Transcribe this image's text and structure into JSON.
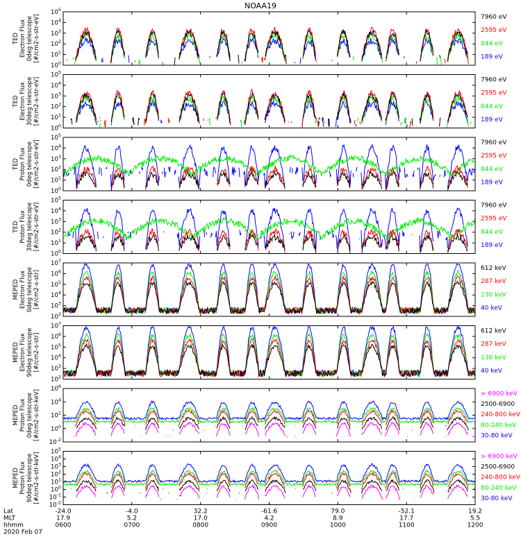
{
  "chart_data": {
    "type": "line",
    "title": "NOAA19",
    "date_label": "2020 Feb 07",
    "footer_rows": [
      {
        "label": "Lat",
        "values": [
          "-24.0",
          "-4.0",
          "32.2",
          "-61.6",
          "79.0",
          "-52.1",
          "19.2"
        ]
      },
      {
        "label": "MLT",
        "values": [
          "17.9",
          "5.2",
          "17.0",
          "4.2",
          "8.9",
          "17.7",
          "5.5"
        ]
      },
      {
        "label": "hhmm",
        "values": [
          "0600",
          "0700",
          "0800",
          "0900",
          "1000",
          "1100",
          "1200"
        ]
      }
    ],
    "x_range_hhmm": [
      "0600",
      "1200"
    ],
    "colors": {
      "black": "#000000",
      "red": "#ff0000",
      "green": "#00ee00",
      "blue": "#0000ff",
      "magenta": "#ff00ff"
    },
    "passes_hhmm": [
      "0620",
      "0648",
      "0718",
      "0750",
      "0820",
      "0845",
      "0905",
      "0935",
      "1005",
      "1030",
      "1048",
      "1118",
      "1145"
    ],
    "panels": [
      {
        "ylabel": [
          "TED",
          "Electron Flux",
          "0deg telescope",
          "[#/cm2-s-str-eV]"
        ],
        "yticks": [
          "10^0",
          "10^1",
          "10^2",
          "10^3",
          "10^4",
          "10^5"
        ],
        "legend": [
          {
            "label": "7960 eV",
            "color": "black"
          },
          {
            "label": "2595 eV",
            "color": "red"
          },
          {
            "label": "844 eV",
            "color": "green"
          },
          {
            "label": "189 eV",
            "color": "blue"
          }
        ]
      },
      {
        "ylabel": [
          "TED",
          "Electron Flux",
          "30deg telescope",
          "[#/cm2-s-str-eV]"
        ],
        "yticks": [
          "10^0",
          "10^1",
          "10^2",
          "10^3",
          "10^4",
          "10^5"
        ],
        "legend": [
          {
            "label": "7960 eV",
            "color": "black"
          },
          {
            "label": "2595 eV",
            "color": "red"
          },
          {
            "label": "844 eV",
            "color": "green"
          },
          {
            "label": "189 eV",
            "color": "blue"
          }
        ]
      },
      {
        "ylabel": [
          "TED",
          "Proton Flux",
          "0deg telescope",
          "[#/cm2-s-str-eV]"
        ],
        "yticks": [
          "10^0",
          "10^1",
          "10^2",
          "10^3",
          "10^4",
          "10^5"
        ],
        "legend": [
          {
            "label": "7960 eV",
            "color": "black"
          },
          {
            "label": "2595 eV",
            "color": "red"
          },
          {
            "label": "844 eV",
            "color": "green"
          },
          {
            "label": "189 eV",
            "color": "blue"
          }
        ]
      },
      {
        "ylabel": [
          "TED",
          "Proton Flux",
          "30deg telescope",
          "[#/cm2-s-str-eV]"
        ],
        "yticks": [
          "10^0",
          "10^1",
          "10^2",
          "10^3",
          "10^4",
          "10^5"
        ],
        "legend": [
          {
            "label": "7960 eV",
            "color": "black"
          },
          {
            "label": "2595 eV",
            "color": "red"
          },
          {
            "label": "844 eV",
            "color": "green"
          },
          {
            "label": "189 eV",
            "color": "blue"
          }
        ]
      },
      {
        "ylabel": [
          "MEPED",
          "Electron Flux",
          "0deg telescope",
          "[#/cm2-s-str]"
        ],
        "yticks": [
          "10^2",
          "10^3",
          "10^4",
          "10^5",
          "10^6",
          "10^7"
        ],
        "legend": [
          {
            "label": "612 keV",
            "color": "black"
          },
          {
            "label": "287 keV",
            "color": "red"
          },
          {
            "label": "130 keV",
            "color": "green"
          },
          {
            "label": "40 keV",
            "color": "blue"
          }
        ]
      },
      {
        "ylabel": [
          "MEPED",
          "Electron Flux",
          "90deg telescope",
          "[#/cm2-s-str]"
        ],
        "yticks": [
          "10^2",
          "10^3",
          "10^4",
          "10^5",
          "10^6",
          "10^7"
        ],
        "legend": [
          {
            "label": "612 keV",
            "color": "black"
          },
          {
            "label": "287 keV",
            "color": "red"
          },
          {
            "label": "130 keV",
            "color": "green"
          },
          {
            "label": "40 keV",
            "color": "blue"
          }
        ]
      },
      {
        "ylabel": [
          "MEPED",
          "Proton Flux",
          "0deg telescope",
          "[#/cm2-s-str-keV]"
        ],
        "yticks": [
          "10^-2",
          "10^0",
          "10^2",
          "10^4",
          "10^6"
        ],
        "legend": [
          {
            "label": "> 6900 keV",
            "color": "magenta"
          },
          {
            "label": "2500-6900",
            "color": "black"
          },
          {
            "label": "240-800 keV",
            "color": "red"
          },
          {
            "label": "80-240 keV",
            "color": "green"
          },
          {
            "label": "30-80 keV",
            "color": "blue"
          }
        ]
      },
      {
        "ylabel": [
          "MEPED",
          "Proton Flux",
          "90deg telescope",
          "[#/cm2-s-str-keV]"
        ],
        "yticks": [
          "10^-2",
          "10^-1",
          "10^0",
          "10^1",
          "10^2",
          "10^3",
          "10^4",
          "10^5"
        ],
        "legend": [
          {
            "label": "> 6900 keV",
            "color": "magenta"
          },
          {
            "label": "2500-6900",
            "color": "black"
          },
          {
            "label": "240-800 keV",
            "color": "red"
          },
          {
            "label": "80-240 keV",
            "color": "green"
          },
          {
            "label": "30-80 keV",
            "color": "blue"
          }
        ]
      }
    ]
  }
}
